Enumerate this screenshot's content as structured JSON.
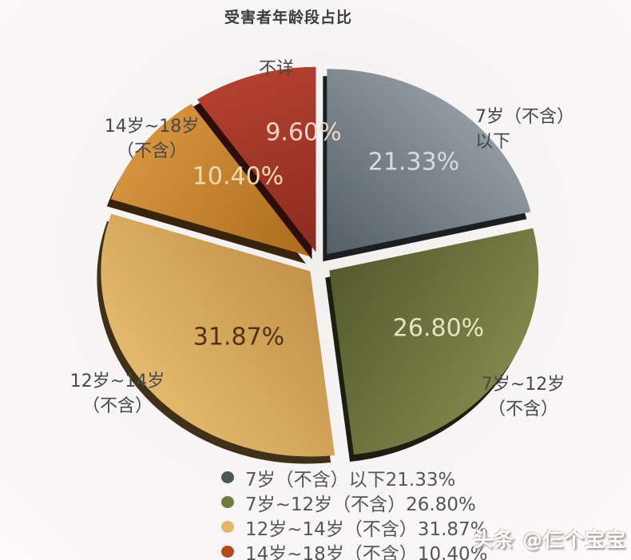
{
  "page": {
    "title": "受害者年龄段占比",
    "watermark": "头条 @仨个宝宝"
  },
  "chart_data": {
    "type": "pie",
    "title": "受害者年龄段占比",
    "unit": "%",
    "total": 100,
    "style": "exploded-3d",
    "legend_position": "bottom",
    "slices": [
      {
        "name": "7岁（不含）以下",
        "value": 21.33,
        "display": "21.33%",
        "outer_label_lines": [
          "7岁（不含）",
          "以下"
        ],
        "color_light": "#909BA1",
        "color_dark": "#535E66",
        "pct_text_color": "#D4DEE2"
      },
      {
        "name": "7岁~12岁（不含）",
        "value": 26.8,
        "display": "26.80%",
        "outer_label_lines": [
          "7岁~12岁",
          "（不含）"
        ],
        "color_light": "#80854B",
        "color_dark": "#545A2C",
        "pct_text_color": "#E7E4C0"
      },
      {
        "name": "12岁~14岁（不含）",
        "value": 31.87,
        "display": "31.87%",
        "outer_label_lines": [
          "12岁~14岁",
          "（不含）"
        ],
        "color_light": "#E3B96C",
        "color_dark": "#C2924A",
        "pct_text_color": "#503310"
      },
      {
        "name": "14岁~18岁（不含）",
        "value": 10.4,
        "display": "10.40%",
        "outer_label_lines": [
          "14岁~18岁",
          "（不含）"
        ],
        "color_light": "#D5933E",
        "color_dark": "#AC6B1E",
        "pct_text_color": "#EFDAB0"
      },
      {
        "name": "不详",
        "value": 9.6,
        "display": "9.60%",
        "outer_label_lines": [
          "不详"
        ],
        "color_light": "#B2402F",
        "color_dark": "#8C2B20",
        "pct_text_color": "#F3D5C5"
      }
    ],
    "legend": [
      {
        "text": "7岁（不含）以下21.33%",
        "dot_color": "#4D5851"
      },
      {
        "text": "7岁~12岁（不含）26.80%",
        "dot_color": "#6D7C3E"
      },
      {
        "text": "12岁~14岁（不含）31.87%",
        "dot_color": "#E3B566"
      },
      {
        "text": "14岁~18岁（不含）10.40%",
        "dot_color": "#B24A1D"
      }
    ]
  }
}
